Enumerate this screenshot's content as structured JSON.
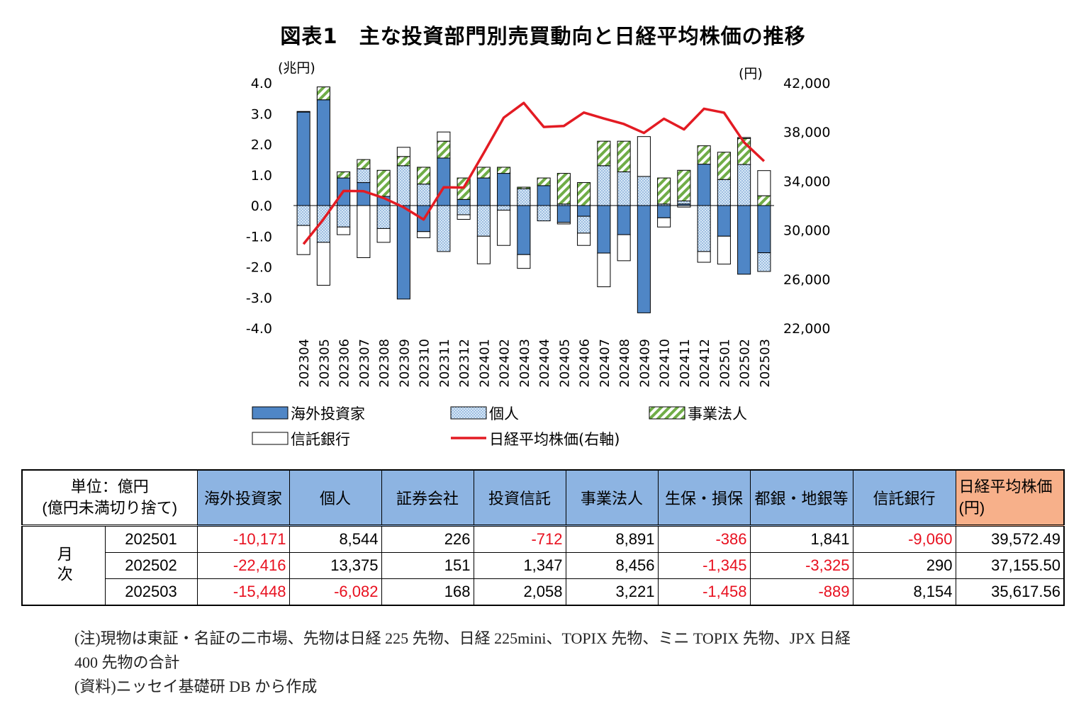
{
  "title": "図表1　主な投資部門別売買動向と日経平均株価の推移",
  "chart_data": {
    "type": "bar",
    "stacked": true,
    "categories": [
      "202304",
      "202305",
      "202306",
      "202307",
      "202308",
      "202309",
      "202310",
      "202311",
      "202312",
      "202401",
      "202402",
      "202403",
      "202404",
      "202405",
      "202406",
      "202407",
      "202408",
      "202409",
      "202410",
      "202411",
      "202412",
      "202501",
      "202502",
      "202503"
    ],
    "y_left": {
      "unit": "(兆円)",
      "ylim": [
        -4,
        4
      ],
      "ticks": [
        "4.0",
        "3.0",
        "2.0",
        "1.0",
        "0.0",
        "-1.0",
        "-2.0",
        "-3.0",
        "-4.0"
      ]
    },
    "y_right": {
      "unit": "(円)",
      "ylim": [
        22000,
        42000
      ],
      "ticks": [
        "42,000",
        "38,000",
        "34,000",
        "30,000",
        "26,000",
        "22,000"
      ]
    },
    "series": [
      {
        "name": "海外投資家",
        "color": "#4f86c6",
        "pattern": "solid",
        "values": [
          3.05,
          3.45,
          0.9,
          0.75,
          0.3,
          -3.05,
          -0.85,
          1.55,
          0.2,
          0.9,
          1.05,
          -1.6,
          0.65,
          -0.55,
          -0.35,
          -1.55,
          -0.95,
          -3.5,
          -0.4,
          0.05,
          1.35,
          -1.0,
          -2.24,
          -1.54
        ]
      },
      {
        "name": "個人",
        "color": "#9dc3e6",
        "pattern": "dots",
        "values": [
          -0.65,
          -1.2,
          -0.7,
          0.45,
          -0.75,
          1.3,
          0.7,
          -1.5,
          -0.3,
          -1.0,
          -0.15,
          0.55,
          -0.5,
          0.05,
          -0.55,
          1.3,
          1.1,
          0.95,
          0.05,
          0.1,
          -1.5,
          0.85,
          1.34,
          -0.61
        ]
      },
      {
        "name": "事業法人",
        "color": "#70ad47",
        "pattern": "hatch",
        "values": [
          0.02,
          0.42,
          0.2,
          0.3,
          0.85,
          0.3,
          0.55,
          0.55,
          0.7,
          0.35,
          0.2,
          0.05,
          0.25,
          1.0,
          0.75,
          0.8,
          1.0,
          0.0,
          0.85,
          1.0,
          0.6,
          0.89,
          0.85,
          0.32
        ]
      },
      {
        "name": "信託銀行",
        "color": "#ffffff",
        "pattern": "empty",
        "values": [
          -0.95,
          -1.4,
          -0.25,
          -1.7,
          -0.45,
          0.3,
          -0.2,
          0.3,
          -0.15,
          -0.9,
          -1.15,
          -0.45,
          0.0,
          -0.05,
          -0.4,
          -1.1,
          -0.85,
          1.3,
          -0.3,
          -0.05,
          -0.35,
          -0.91,
          0.03,
          0.82
        ]
      }
    ],
    "line": {
      "name": "日経平均株価(右軸)",
      "color": "#e31b23",
      "values": [
        28856,
        30888,
        33189,
        33172,
        32619,
        31858,
        30859,
        33487,
        33464,
        36287,
        39166,
        40369,
        38406,
        38488,
        39583,
        39102,
        38648,
        37920,
        39081,
        38208,
        39895,
        39572,
        37156,
        35618
      ]
    },
    "legend": [
      "海外投資家",
      "個人",
      "事業法人",
      "信託銀行",
      "日経平均株価(右軸)"
    ]
  },
  "table": {
    "corner_line1": "単位：億円",
    "corner_line2": "(億円未満切り捨て)",
    "period_label": "月次",
    "headers": [
      "海外投資家",
      "個人",
      "証券会社",
      "投資信託",
      "事業法人",
      "生保・損保",
      "都銀・地銀等",
      "信託銀行"
    ],
    "nikkei_header_line1": "日経平均株価",
    "nikkei_header_line2": "(円)",
    "rows": [
      {
        "month": "202501",
        "cells": [
          "-10,171",
          "8,544",
          "226",
          "-712",
          "8,891",
          "-386",
          "1,841",
          "-9,060",
          "39,572.49"
        ]
      },
      {
        "month": "202502",
        "cells": [
          "-22,416",
          "13,375",
          "151",
          "1,347",
          "8,456",
          "-1,345",
          "-3,325",
          "290",
          "37,155.50"
        ]
      },
      {
        "month": "202503",
        "cells": [
          "-15,448",
          "-6,082",
          "168",
          "2,058",
          "3,221",
          "-1,458",
          "-889",
          "8,154",
          "35,617.56"
        ]
      }
    ]
  },
  "notes": [
    "(注)現物は東証・名証の二市場、先物は日経 225 先物、日経 225mini、TOPIX 先物、ミニ TOPIX 先物、JPX 日経",
    "400 先物の合計",
    "(資料)ニッセイ基礎研 DB から作成"
  ]
}
